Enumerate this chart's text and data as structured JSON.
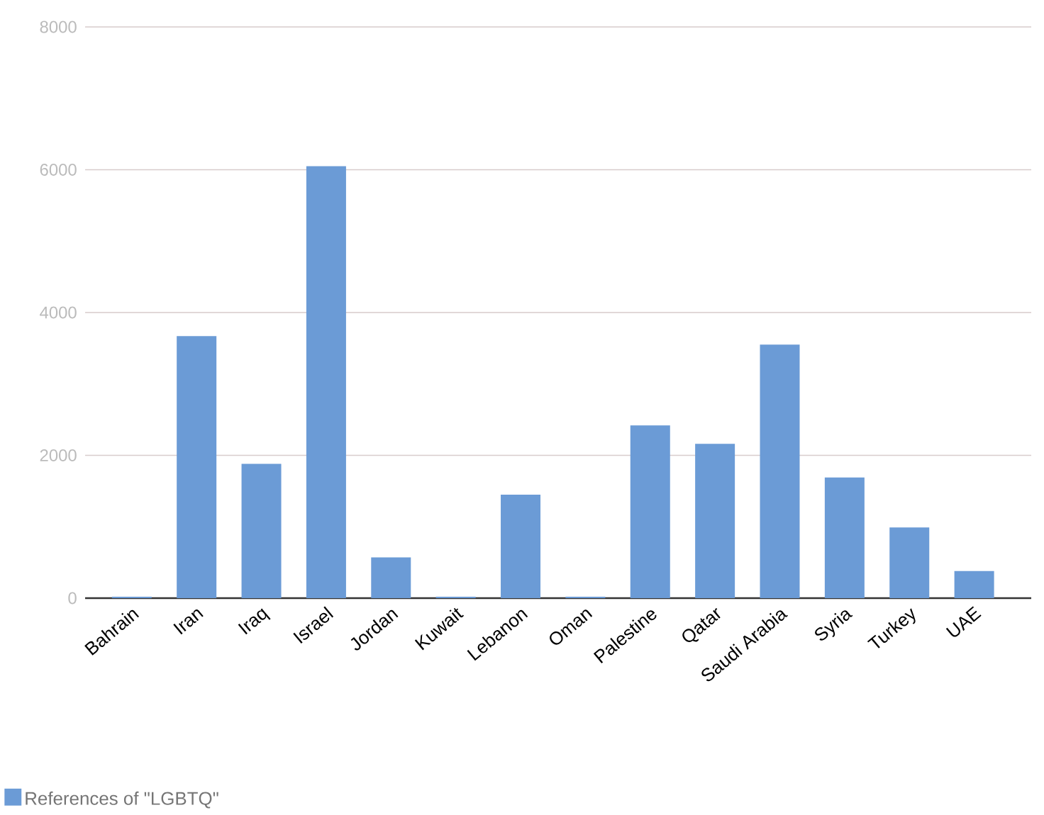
{
  "chart_data": {
    "type": "bar",
    "categories": [
      "Bahrain",
      "Iran",
      "Iraq",
      "Israel",
      "Jordan",
      "Kuwait",
      "Lebanon",
      "Oman",
      "Palestine",
      "Qatar",
      "Saudi Arabia",
      "Syria",
      "Turkey",
      "UAE"
    ],
    "series": [
      {
        "name": "References of \"LGBTQ\"",
        "color": "#6b9bd6",
        "values": [
          20,
          3670,
          1880,
          6050,
          570,
          20,
          1450,
          20,
          2420,
          2160,
          3550,
          1690,
          990,
          380
        ]
      }
    ],
    "ylim": [
      0,
      8000
    ],
    "yticks": [
      0,
      2000,
      4000,
      6000,
      8000
    ],
    "grid": "y",
    "legend": "bottom left"
  }
}
